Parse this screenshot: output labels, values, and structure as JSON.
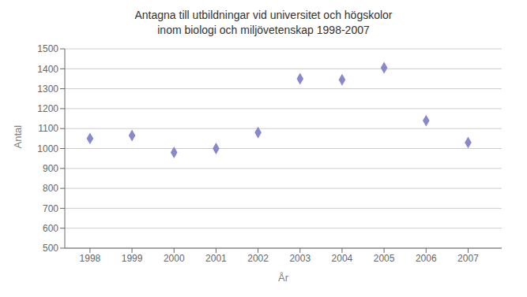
{
  "chart_data": {
    "type": "scatter",
    "title": "Antagna till utbildningar vid universitet och högskolor\ninom biologi och miljövetenskap 1998-2007",
    "xlabel": "År",
    "ylabel": "Antal",
    "x": [
      1998,
      1999,
      2000,
      2001,
      2002,
      2003,
      2004,
      2005,
      2006,
      2007
    ],
    "values": [
      1050,
      1065,
      980,
      1000,
      1080,
      1350,
      1345,
      1405,
      1140,
      1030
    ],
    "xlim": [
      1997.4,
      2007.8
    ],
    "xticks": [
      1998,
      1999,
      2000,
      2001,
      2002,
      2003,
      2004,
      2005,
      2006,
      2007
    ],
    "ylim": [
      500,
      1500
    ],
    "yticks": [
      500,
      600,
      700,
      800,
      900,
      1000,
      1100,
      1200,
      1300,
      1400,
      1500
    ],
    "color": "#8888cc",
    "marker": "diamond",
    "grid": true
  }
}
